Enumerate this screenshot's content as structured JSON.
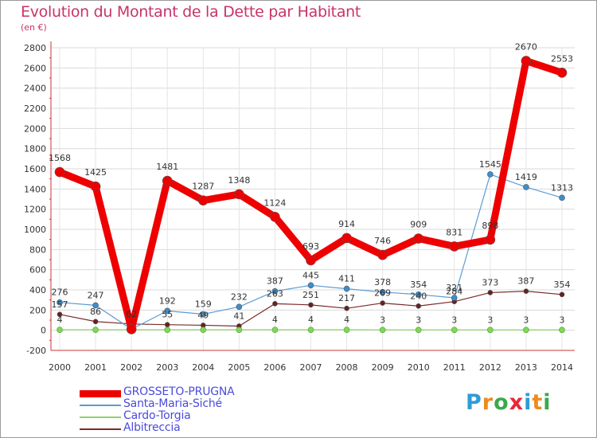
{
  "title": "Evolution du Montant de la Dette par Habitant",
  "unit": "(en €)",
  "logo": {
    "letters": [
      {
        "ch": "P",
        "color": "#2f9bd8"
      },
      {
        "ch": "r",
        "color": "#f08a1c"
      },
      {
        "ch": "o",
        "color": "#3aa94a"
      },
      {
        "ch": "x",
        "color": "#e8263a"
      },
      {
        "ch": "i",
        "color": "#2f9bd8"
      },
      {
        "ch": "t",
        "color": "#f08a1c"
      },
      {
        "ch": "i",
        "color": "#3aa94a"
      }
    ]
  },
  "chart_data": {
    "type": "line",
    "title": "Evolution du Montant de la Dette par Habitant",
    "ylabel": "(en €)",
    "xlabel": "",
    "ylim": [
      -200,
      2800
    ],
    "yticks": [
      -200,
      0,
      200,
      400,
      600,
      800,
      1000,
      1200,
      1400,
      1600,
      1800,
      2000,
      2200,
      2400,
      2600,
      2800
    ],
    "grid": true,
    "legend_position": "bottom-left",
    "x": [
      "2000",
      "2001",
      "2002",
      "2003",
      "2004",
      "2005",
      "2006",
      "2007",
      "2008",
      "2009",
      "2010",
      "2011",
      "2012",
      "2013",
      "2014"
    ],
    "series": [
      {
        "name": "GROSSETO-PRUGNA",
        "color": "#ee0000",
        "values": [
          1568,
          1425,
          10,
          1481,
          1287,
          1348,
          1124,
          693,
          914,
          746,
          909,
          831,
          898,
          2670,
          2553
        ],
        "labels": [
          "1568",
          "1425",
          "",
          "1481",
          "1287",
          "1348",
          "1124",
          "693",
          "914",
          "746",
          "909",
          "831",
          "898",
          "2670",
          "2553"
        ]
      },
      {
        "name": "Santa-Maria-Siché",
        "color": "#5b9bd5",
        "values": [
          276,
          247,
          10,
          192,
          159,
          232,
          387,
          445,
          411,
          378,
          354,
          321,
          1545,
          1419,
          1313
        ],
        "labels": [
          "276",
          "247",
          "",
          "192",
          "159",
          "232",
          "387",
          "445",
          "411",
          "378",
          "354",
          "321",
          "1545",
          "1419",
          "1313"
        ]
      },
      {
        "name": "Cardo-Torgia",
        "color": "#8fd16b",
        "values": [
          4,
          4,
          4,
          4,
          4,
          4,
          4,
          4,
          4,
          3,
          3,
          3,
          3,
          3,
          3
        ],
        "labels": [
          "4",
          "",
          "",
          "",
          "",
          "",
          "4",
          "4",
          "4",
          "3",
          "3",
          "3",
          "3",
          "3",
          "3"
        ]
      },
      {
        "name": "Albitreccia",
        "color": "#7a2a2a",
        "values": [
          157,
          86,
          62,
          55,
          49,
          41,
          263,
          251,
          217,
          269,
          240,
          284,
          373,
          387,
          354
        ],
        "labels": [
          "157",
          "86",
          "62",
          "55",
          "49",
          "41",
          "263",
          "251",
          "217",
          "269",
          "240",
          "284",
          "373",
          "387",
          "354"
        ]
      }
    ]
  }
}
